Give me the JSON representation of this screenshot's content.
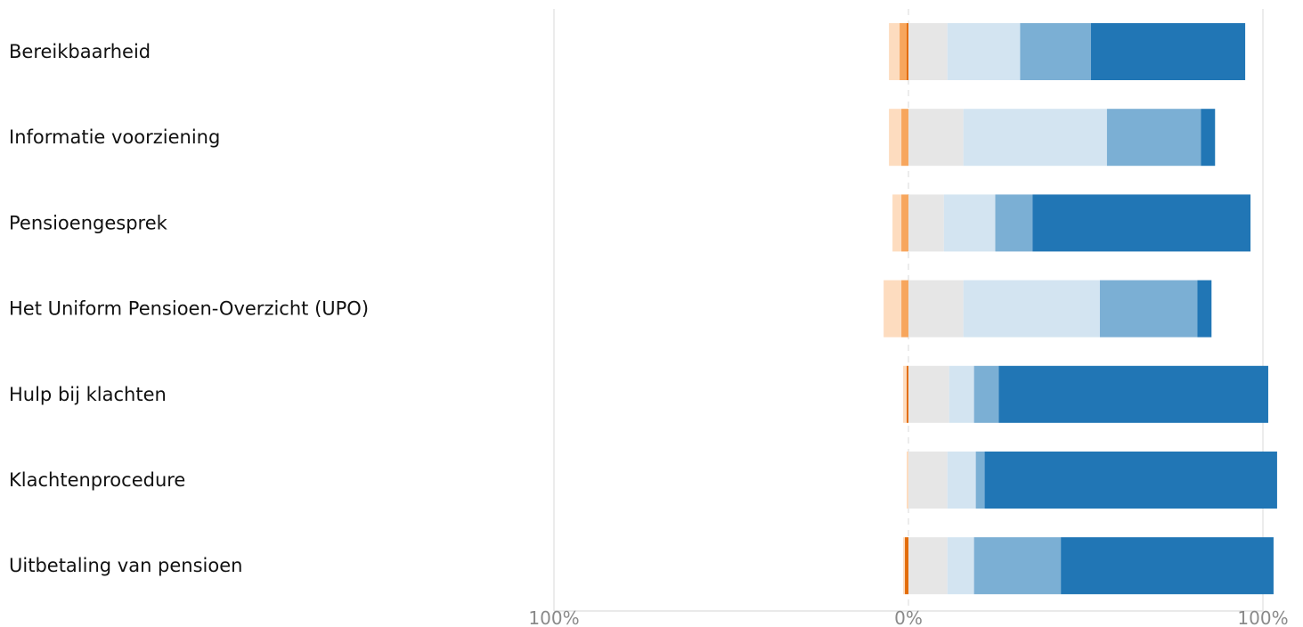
{
  "chart_data": {
    "type": "bar",
    "subtype": "diverging-stacked-horizontal",
    "orientation": "horizontal",
    "title": "",
    "xlabel": "",
    "ylabel": "",
    "xlim": [
      -100,
      100
    ],
    "x_ticks": [
      {
        "value": -100,
        "label": "100%"
      },
      {
        "value": 0,
        "label": "0%"
      },
      {
        "value": 100,
        "label": "100%"
      }
    ],
    "grid": true,
    "legend": "none",
    "categories": [
      "Bereikbaarheid",
      "Informatie voorziening",
      "Pensioengesprek",
      "Het Uniform Pensioen-Overzicht (UPO)",
      "Hulp bij klachten",
      "Klachtenprocedure",
      "Uitbetaling van pensioen"
    ],
    "segment_colors": [
      "#e36c0a",
      "#f7a65d",
      "#fddcbf",
      "#e6e6e6",
      "#d3e4f1",
      "#7bafd4",
      "#2176b5"
    ],
    "series": [
      {
        "color": "#e36c0a",
        "values": [
          -0.5,
          0,
          0,
          0,
          -0.5,
          0,
          -1
        ]
      },
      {
        "color": "#f7a65d",
        "values": [
          -2,
          -2,
          -2,
          -2,
          0,
          0,
          0
        ]
      },
      {
        "color": "#fddcbf",
        "values": [
          -3,
          -3.5,
          -2.5,
          -5,
          -1,
          -0.5,
          -0.5
        ]
      },
      {
        "color": "#e6e6e6",
        "values": [
          11,
          15.5,
          10,
          15.5,
          11.5,
          11,
          11
        ]
      },
      {
        "color": "#d3e4f1",
        "values": [
          20.5,
          40.5,
          14.5,
          38.5,
          7,
          8,
          7.5
        ]
      },
      {
        "color": "#7bafd4",
        "values": [
          20,
          26.5,
          10.5,
          27.5,
          7,
          2.5,
          24.5
        ]
      },
      {
        "color": "#2176b5",
        "values": [
          43.5,
          4,
          61.5,
          4,
          76,
          82.5,
          60
        ]
      }
    ]
  }
}
